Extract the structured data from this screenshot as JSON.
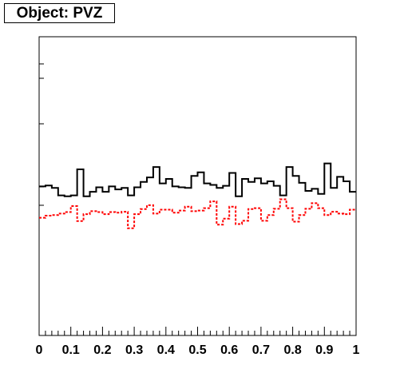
{
  "title": "Object: PVZ",
  "chart_data": {
    "type": "line",
    "style": "step-histogram",
    "title": "Object: PVZ",
    "xlabel": "",
    "ylabel": "",
    "xlim": [
      0,
      1
    ],
    "ylim": [
      0,
      1
    ],
    "grid": false,
    "x_tick_labels": [
      "0",
      "0.1",
      "0.2",
      "0.3",
      "0.4",
      "0.5",
      "0.6",
      "0.7",
      "0.8",
      "0.9",
      "1"
    ],
    "y_tick_labels": [],
    "bin_edges": [
      0,
      0.02,
      0.04,
      0.06,
      0.08,
      0.1,
      0.12,
      0.14,
      0.16,
      0.18,
      0.2,
      0.22,
      0.24,
      0.26,
      0.28,
      0.3,
      0.32,
      0.34,
      0.36,
      0.38,
      0.4,
      0.42,
      0.44,
      0.46,
      0.48,
      0.5,
      0.52,
      0.54,
      0.56,
      0.58,
      0.6,
      0.62,
      0.64,
      0.66,
      0.68,
      0.7,
      0.72,
      0.74,
      0.76,
      0.78,
      0.8,
      0.82,
      0.84,
      0.86,
      0.88,
      0.9,
      0.92,
      0.94,
      0.96,
      0.98,
      1.0
    ],
    "series": [
      {
        "color": "#000000",
        "dashed": false,
        "values": [
          0.499,
          0.502,
          0.494,
          0.469,
          0.466,
          0.469,
          0.556,
          0.466,
          0.481,
          0.496,
          0.481,
          0.499,
          0.489,
          0.494,
          0.469,
          0.496,
          0.514,
          0.529,
          0.564,
          0.509,
          0.524,
          0.499,
          0.496,
          0.494,
          0.534,
          0.546,
          0.509,
          0.504,
          0.494,
          0.501,
          0.544,
          0.466,
          0.524,
          0.514,
          0.526,
          0.509,
          0.516,
          0.501,
          0.469,
          0.564,
          0.534,
          0.511,
          0.484,
          0.491,
          0.474,
          0.576,
          0.494,
          0.531,
          0.516,
          0.481
        ]
      },
      {
        "color": "#ff0000",
        "dashed": true,
        "values": [
          0.394,
          0.401,
          0.403,
          0.408,
          0.413,
          0.433,
          0.383,
          0.406,
          0.416,
          0.413,
          0.406,
          0.413,
          0.411,
          0.414,
          0.359,
          0.406,
          0.423,
          0.436,
          0.408,
          0.421,
          0.421,
          0.411,
          0.418,
          0.431,
          0.416,
          0.418,
          0.426,
          0.449,
          0.371,
          0.391,
          0.431,
          0.373,
          0.384,
          0.423,
          0.426,
          0.384,
          0.403,
          0.424,
          0.456,
          0.426,
          0.381,
          0.403,
          0.424,
          0.443,
          0.426,
          0.403,
          0.414,
          0.408,
          0.406,
          0.421
        ]
      }
    ]
  }
}
